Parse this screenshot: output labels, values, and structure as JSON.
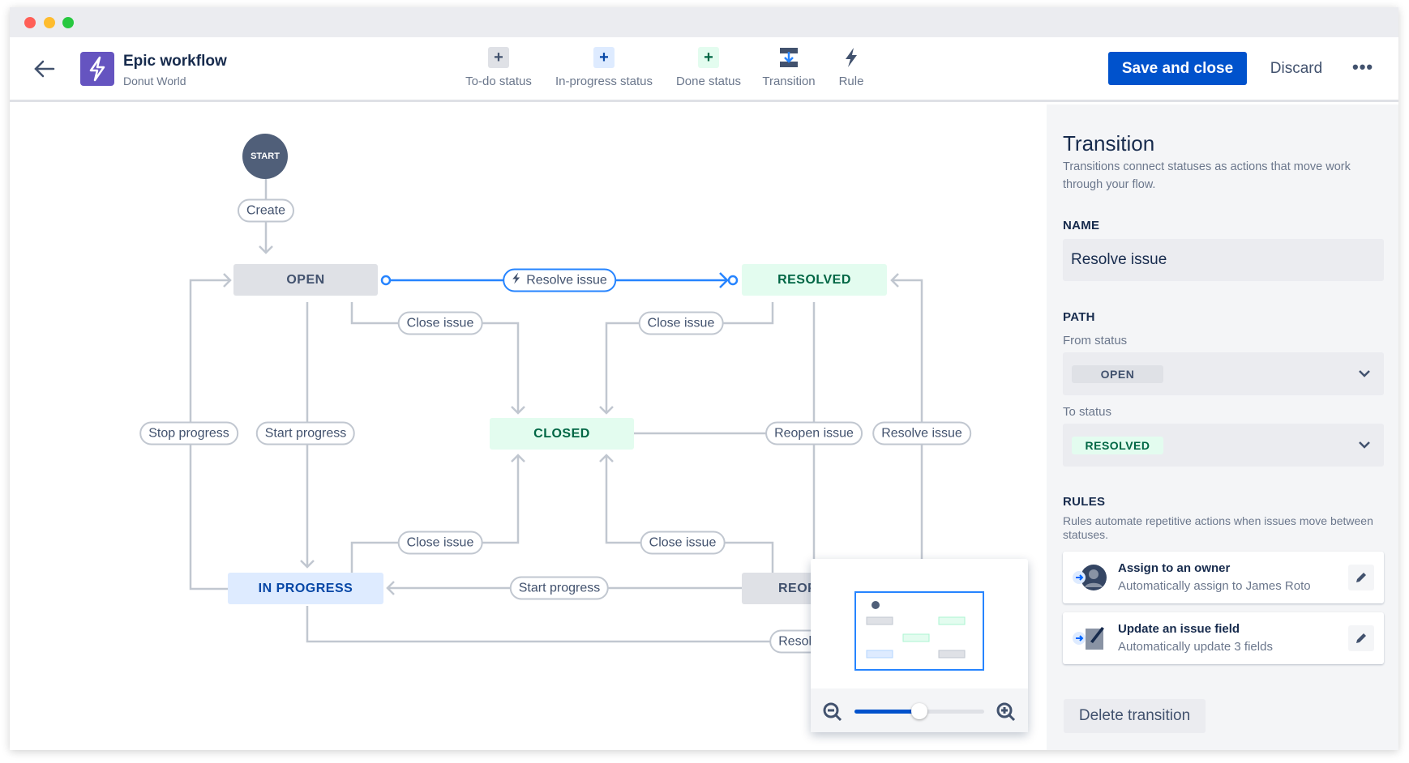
{
  "header": {
    "title": "Epic workflow",
    "subtitle": "Donut World",
    "save_label": "Save and close",
    "discard_label": "Discard",
    "more_icon": "more-icon",
    "tools": [
      {
        "label": "To-do status",
        "icon": "plus-icon",
        "color": "#42526e",
        "bg": "#dfe1e6"
      },
      {
        "label": "In-progress status",
        "icon": "plus-icon",
        "color": "#0747a6",
        "bg": "#deebff"
      },
      {
        "label": "Done status",
        "icon": "plus-icon",
        "color": "#006644",
        "bg": "#e3fcef"
      },
      {
        "label": "Transition",
        "icon": "transition-icon"
      },
      {
        "label": "Rule",
        "icon": "lightning-icon"
      }
    ]
  },
  "diagram": {
    "start": "START",
    "statuses": {
      "open": "OPEN",
      "resolved": "RESOLVED",
      "closed": "CLOSED",
      "in_progress": "IN PROGRESS",
      "reopened": "REOPENED"
    },
    "transitions": {
      "create": "Create",
      "resolve_selected": "Resolve issue",
      "close_open": "Close issue",
      "close_resolved": "Close issue",
      "stop_progress": "Stop progress",
      "start_progress_open": "Start progress",
      "reopen": "Reopen issue",
      "resolve_reopened": "Resolve issue",
      "close_inprogress": "Close issue",
      "close_reopened": "Close issue",
      "start_progress_reopened": "Start progress",
      "resolve_inprogress": "Resolve issue"
    },
    "zoom_level": 0.5
  },
  "panel": {
    "title": "Transition",
    "description": "Transitions connect statuses as actions that move work through your flow.",
    "name_label": "NAME",
    "name_value": "Resolve issue",
    "path_label": "PATH",
    "from_label": "From status",
    "from_value": "OPEN",
    "to_label": "To status",
    "to_value": "RESOLVED",
    "rules_label": "RULES",
    "rules_description": "Rules automate repetitive actions when issues move between statuses.",
    "rules": [
      {
        "title": "Assign to an owner",
        "subtitle": "Automatically assign to James Roto"
      },
      {
        "title": "Update an issue field",
        "subtitle": "Automatically update 3 fields"
      }
    ],
    "delete_label": "Delete transition"
  },
  "colors": {
    "accent": "#0052cc",
    "selected_line": "#2684ff",
    "connector": "#c1c7d0",
    "brand": "#6554c0"
  }
}
